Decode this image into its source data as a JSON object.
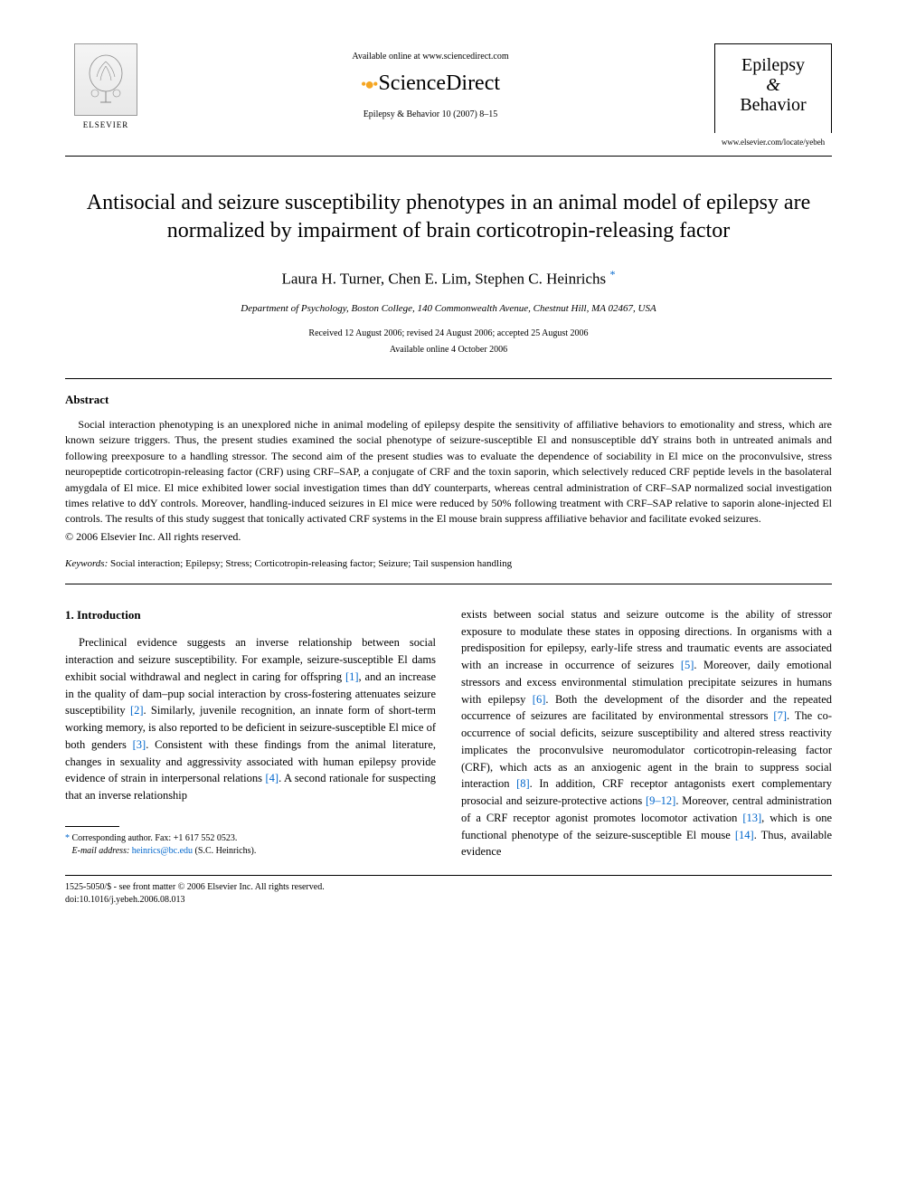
{
  "header": {
    "publisher_name": "ELSEVIER",
    "available_text": "Available online at www.sciencedirect.com",
    "platform_name": "ScienceDirect",
    "journal_ref": "Epilepsy & Behavior 10 (2007) 8–15",
    "journal_title_line1": "Epilepsy",
    "journal_title_amp": "&",
    "journal_title_line2": "Behavior",
    "journal_url": "www.elsevier.com/locate/yebeh"
  },
  "title": "Antisocial and seizure susceptibility phenotypes in an animal model of epilepsy are normalized by impairment of brain corticotropin-releasing factor",
  "authors": "Laura H. Turner, Chen E. Lim, Stephen C. Heinrichs",
  "author_star": "*",
  "affiliation": "Department of Psychology, Boston College, 140 Commonwealth Avenue, Chestnut Hill, MA 02467, USA",
  "dates_line1": "Received 12 August 2006; revised 24 August 2006; accepted 25 August 2006",
  "dates_line2": "Available online 4 October 2006",
  "abstract": {
    "heading": "Abstract",
    "body": "Social interaction phenotyping is an unexplored niche in animal modeling of epilepsy despite the sensitivity of affiliative behaviors to emotionality and stress, which are known seizure triggers. Thus, the present studies examined the social phenotype of seizure-susceptible El and nonsusceptible ddY strains both in untreated animals and following preexposure to a handling stressor. The second aim of the present studies was to evaluate the dependence of sociability in El mice on the proconvulsive, stress neuropeptide corticotropin-releasing factor (CRF) using CRF–SAP, a conjugate of CRF and the toxin saporin, which selectively reduced CRF peptide levels in the basolateral amygdala of El mice. El mice exhibited lower social investigation times than ddY counterparts, whereas central administration of CRF–SAP normalized social investigation times relative to ddY controls. Moreover, handling-induced seizures in El mice were reduced by 50% following treatment with CRF–SAP relative to saporin alone-injected El controls. The results of this study suggest that tonically activated CRF systems in the El mouse brain suppress affiliative behavior and facilitate evoked seizures.",
    "copyright": "© 2006 Elsevier Inc. All rights reserved."
  },
  "keywords": {
    "label": "Keywords:",
    "text": " Social interaction; Epilepsy; Stress; Corticotropin-releasing factor; Seizure; Tail suspension handling"
  },
  "intro": {
    "heading": "1. Introduction",
    "col1": "Preclinical evidence suggests an inverse relationship between social interaction and seizure susceptibility. For example, seizure-susceptible El dams exhibit social withdrawal and neglect in caring for offspring [1], and an increase in the quality of dam–pup social interaction by cross-fostering attenuates seizure susceptibility [2]. Similarly, juvenile recognition, an innate form of short-term working memory, is also reported to be deficient in seizure-susceptible El mice of both genders [3]. Consistent with these findings from the animal literature, changes in sexuality and aggressivity associated with human epilepsy provide evidence of strain in interpersonal relations [4]. A second rationale for suspecting that an inverse relationship",
    "col2": "exists between social status and seizure outcome is the ability of stressor exposure to modulate these states in opposing directions. In organisms with a predisposition for epilepsy, early-life stress and traumatic events are associated with an increase in occurrence of seizures [5]. Moreover, daily emotional stressors and excess environmental stimulation precipitate seizures in humans with epilepsy [6]. Both the development of the disorder and the repeated occurrence of seizures are facilitated by environmental stressors [7]. The co-occurrence of social deficits, seizure susceptibility and altered stress reactivity implicates the proconvulsive neuromodulator corticotropin-releasing factor (CRF), which acts as an anxiogenic agent in the brain to suppress social interaction [8]. In addition, CRF receptor antagonists exert complementary prosocial and seizure-protective actions [9–12]. Moreover, central administration of a CRF receptor agonist promotes locomotor activation [13], which is one functional phenotype of the seizure-susceptible El mouse [14]. Thus, available evidence"
  },
  "footnote": {
    "corresponding": "Corresponding author. Fax: +1 617 552 0523.",
    "email_label": "E-mail address:",
    "email": "heinrics@bc.edu",
    "email_suffix": " (S.C. Heinrichs)."
  },
  "footer": {
    "line1": "1525-5050/$ - see front matter © 2006 Elsevier Inc. All rights reserved.",
    "line2": "doi:10.1016/j.yebeh.2006.08.013"
  },
  "colors": {
    "link": "#0066cc",
    "text": "#000000",
    "sd_orange": "#f5a623"
  }
}
